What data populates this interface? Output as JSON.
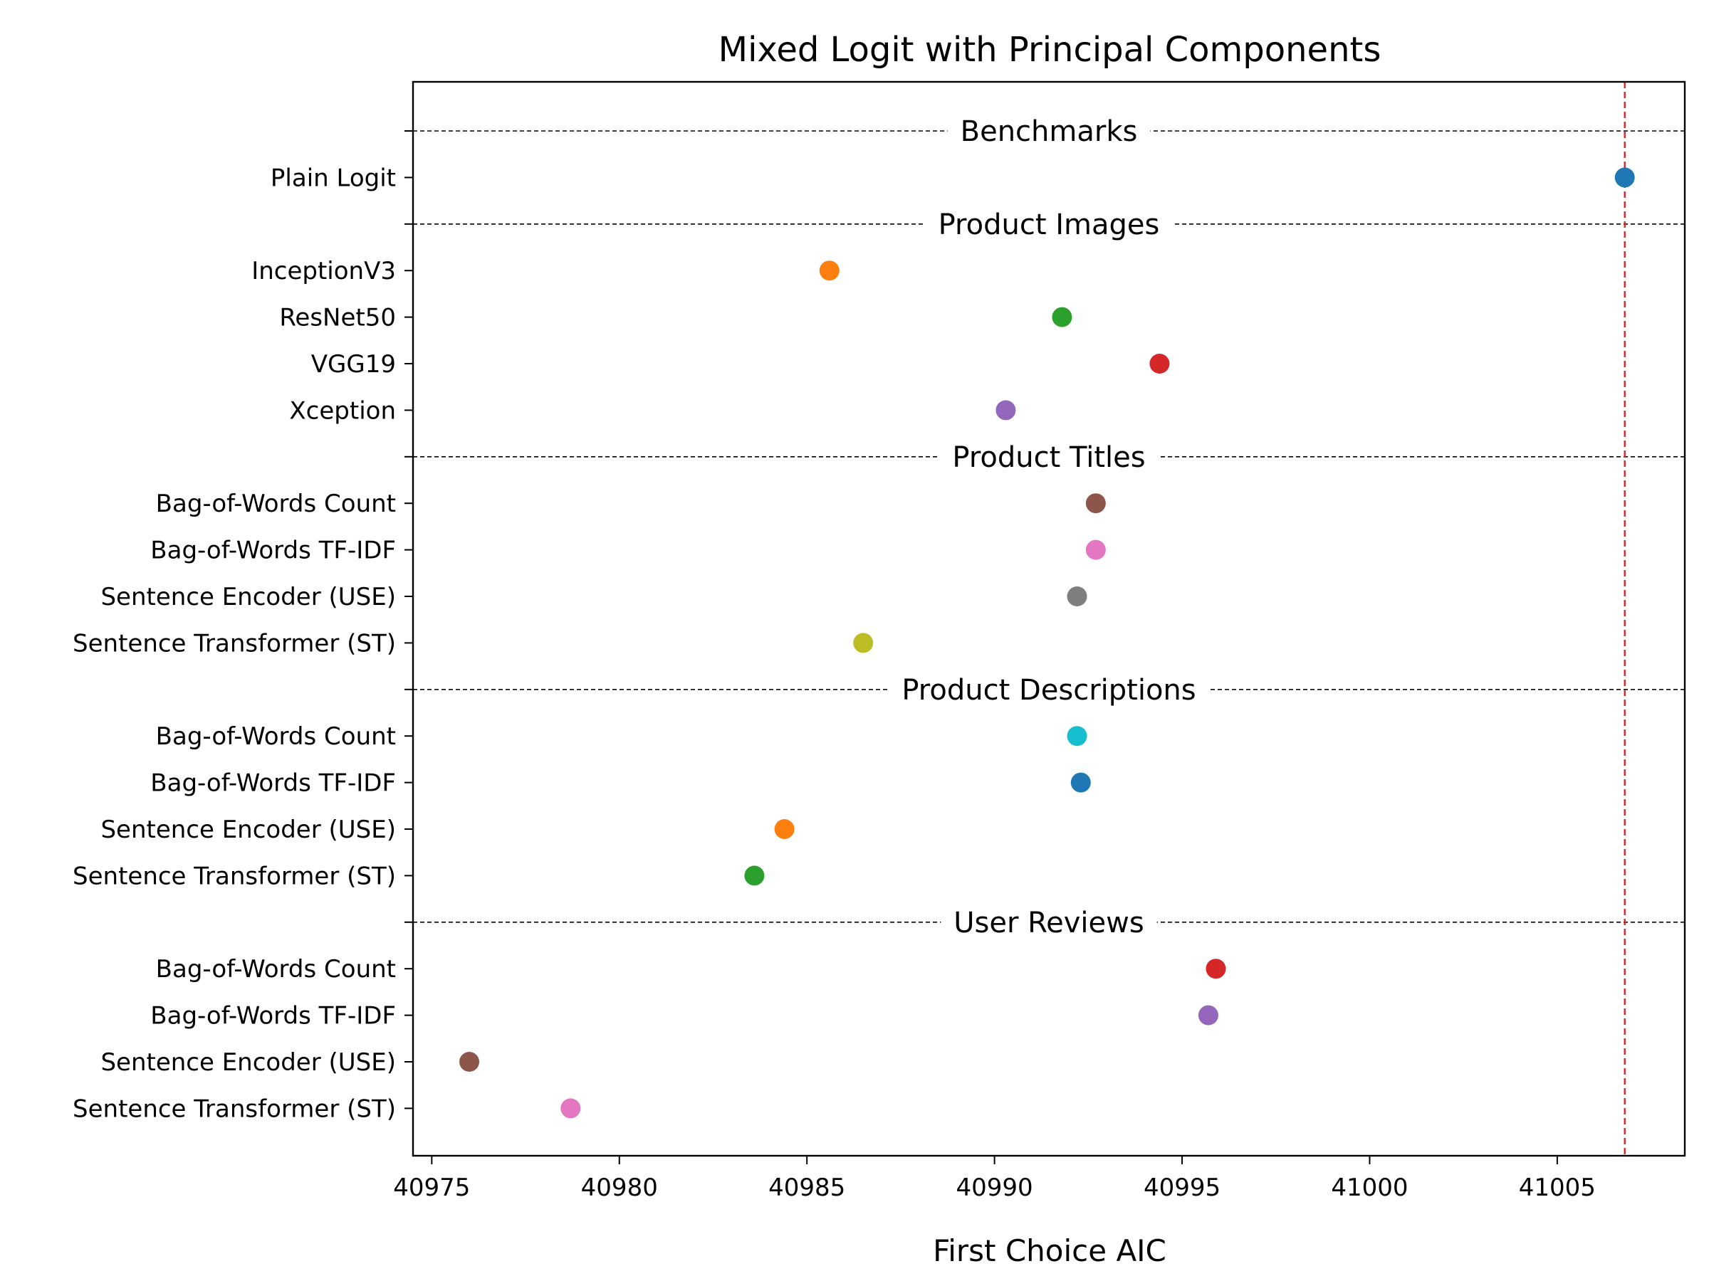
{
  "chart_data": {
    "type": "scatter",
    "title": "Mixed Logit with Principal Components",
    "xlabel": "First Choice AIC",
    "ylabel": "",
    "xlim": [
      40974.5,
      41008.4
    ],
    "xticks": [
      40975,
      40980,
      40985,
      40990,
      40995,
      41000,
      41005
    ],
    "reference_line": {
      "x": 41006.8,
      "style": "dashed",
      "color": "#d62728"
    },
    "grid": false,
    "groups": [
      {
        "name": "Benchmarks",
        "items": [
          {
            "label": "Plain Logit",
            "value": 41006.8,
            "color": "#1f77b4"
          }
        ]
      },
      {
        "name": "Product Images",
        "items": [
          {
            "label": "InceptionV3",
            "value": 40985.6,
            "color": "#ff7f0e"
          },
          {
            "label": "ResNet50",
            "value": 40991.8,
            "color": "#2ca02c"
          },
          {
            "label": "VGG19",
            "value": 40994.4,
            "color": "#d62728"
          },
          {
            "label": "Xception",
            "value": 40990.3,
            "color": "#9467bd"
          }
        ]
      },
      {
        "name": "Product Titles",
        "items": [
          {
            "label": "Bag-of-Words Count",
            "value": 40992.7,
            "color": "#8c564b"
          },
          {
            "label": "Bag-of-Words TF-IDF",
            "value": 40992.7,
            "color": "#e377c2"
          },
          {
            "label": "Sentence Encoder (USE)",
            "value": 40992.2,
            "color": "#7f7f7f"
          },
          {
            "label": "Sentence Transformer (ST)",
            "value": 40986.5,
            "color": "#bcbd22"
          }
        ]
      },
      {
        "name": "Product Descriptions",
        "items": [
          {
            "label": "Bag-of-Words Count",
            "value": 40992.2,
            "color": "#17becf"
          },
          {
            "label": "Bag-of-Words TF-IDF",
            "value": 40992.3,
            "color": "#1f77b4"
          },
          {
            "label": "Sentence Encoder (USE)",
            "value": 40984.4,
            "color": "#ff7f0e"
          },
          {
            "label": "Sentence Transformer (ST)",
            "value": 40983.6,
            "color": "#2ca02c"
          }
        ]
      },
      {
        "name": "User Reviews",
        "items": [
          {
            "label": "Bag-of-Words Count",
            "value": 40995.9,
            "color": "#d62728"
          },
          {
            "label": "Bag-of-Words TF-IDF",
            "value": 40995.7,
            "color": "#9467bd"
          },
          {
            "label": "Sentence Encoder (USE)",
            "value": 40976.0,
            "color": "#8c564b"
          },
          {
            "label": "Sentence Transformer (ST)",
            "value": 40978.7,
            "color": "#e377c2"
          }
        ]
      }
    ]
  }
}
